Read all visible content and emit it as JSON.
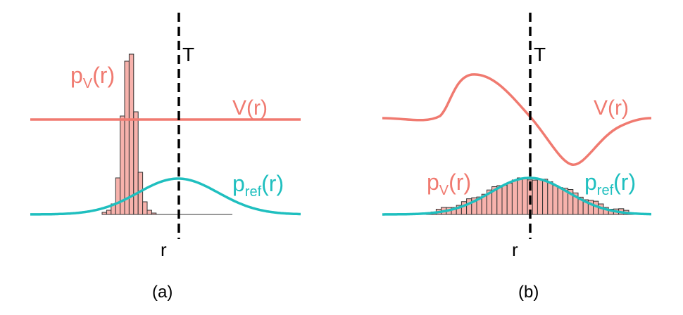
{
  "colors": {
    "potential": "#f07a70",
    "reference": "#1fbfbf",
    "histogram_fill": "#f7b2ac",
    "histogram_edge": "#333333",
    "threshold": "#000000"
  },
  "panels": [
    {
      "caption": "(a)",
      "threshold_label": "T",
      "r_label": "r",
      "V_label": "V(r)",
      "pV_label_main": "p",
      "pV_label_sub": "V",
      "pV_label_arg": "(r)",
      "pref_label_main": "p",
      "pref_label_sub": "ref",
      "pref_label_arg": "(r)"
    },
    {
      "caption": "(b)",
      "threshold_label": "T",
      "r_label": "r",
      "V_label": "V(r)",
      "pV_label_main": "p",
      "pV_label_sub": "V",
      "pV_label_arg": "(r)",
      "pref_label_main": "p",
      "pref_label_sub": "ref",
      "pref_label_arg": "(r)"
    }
  ]
}
